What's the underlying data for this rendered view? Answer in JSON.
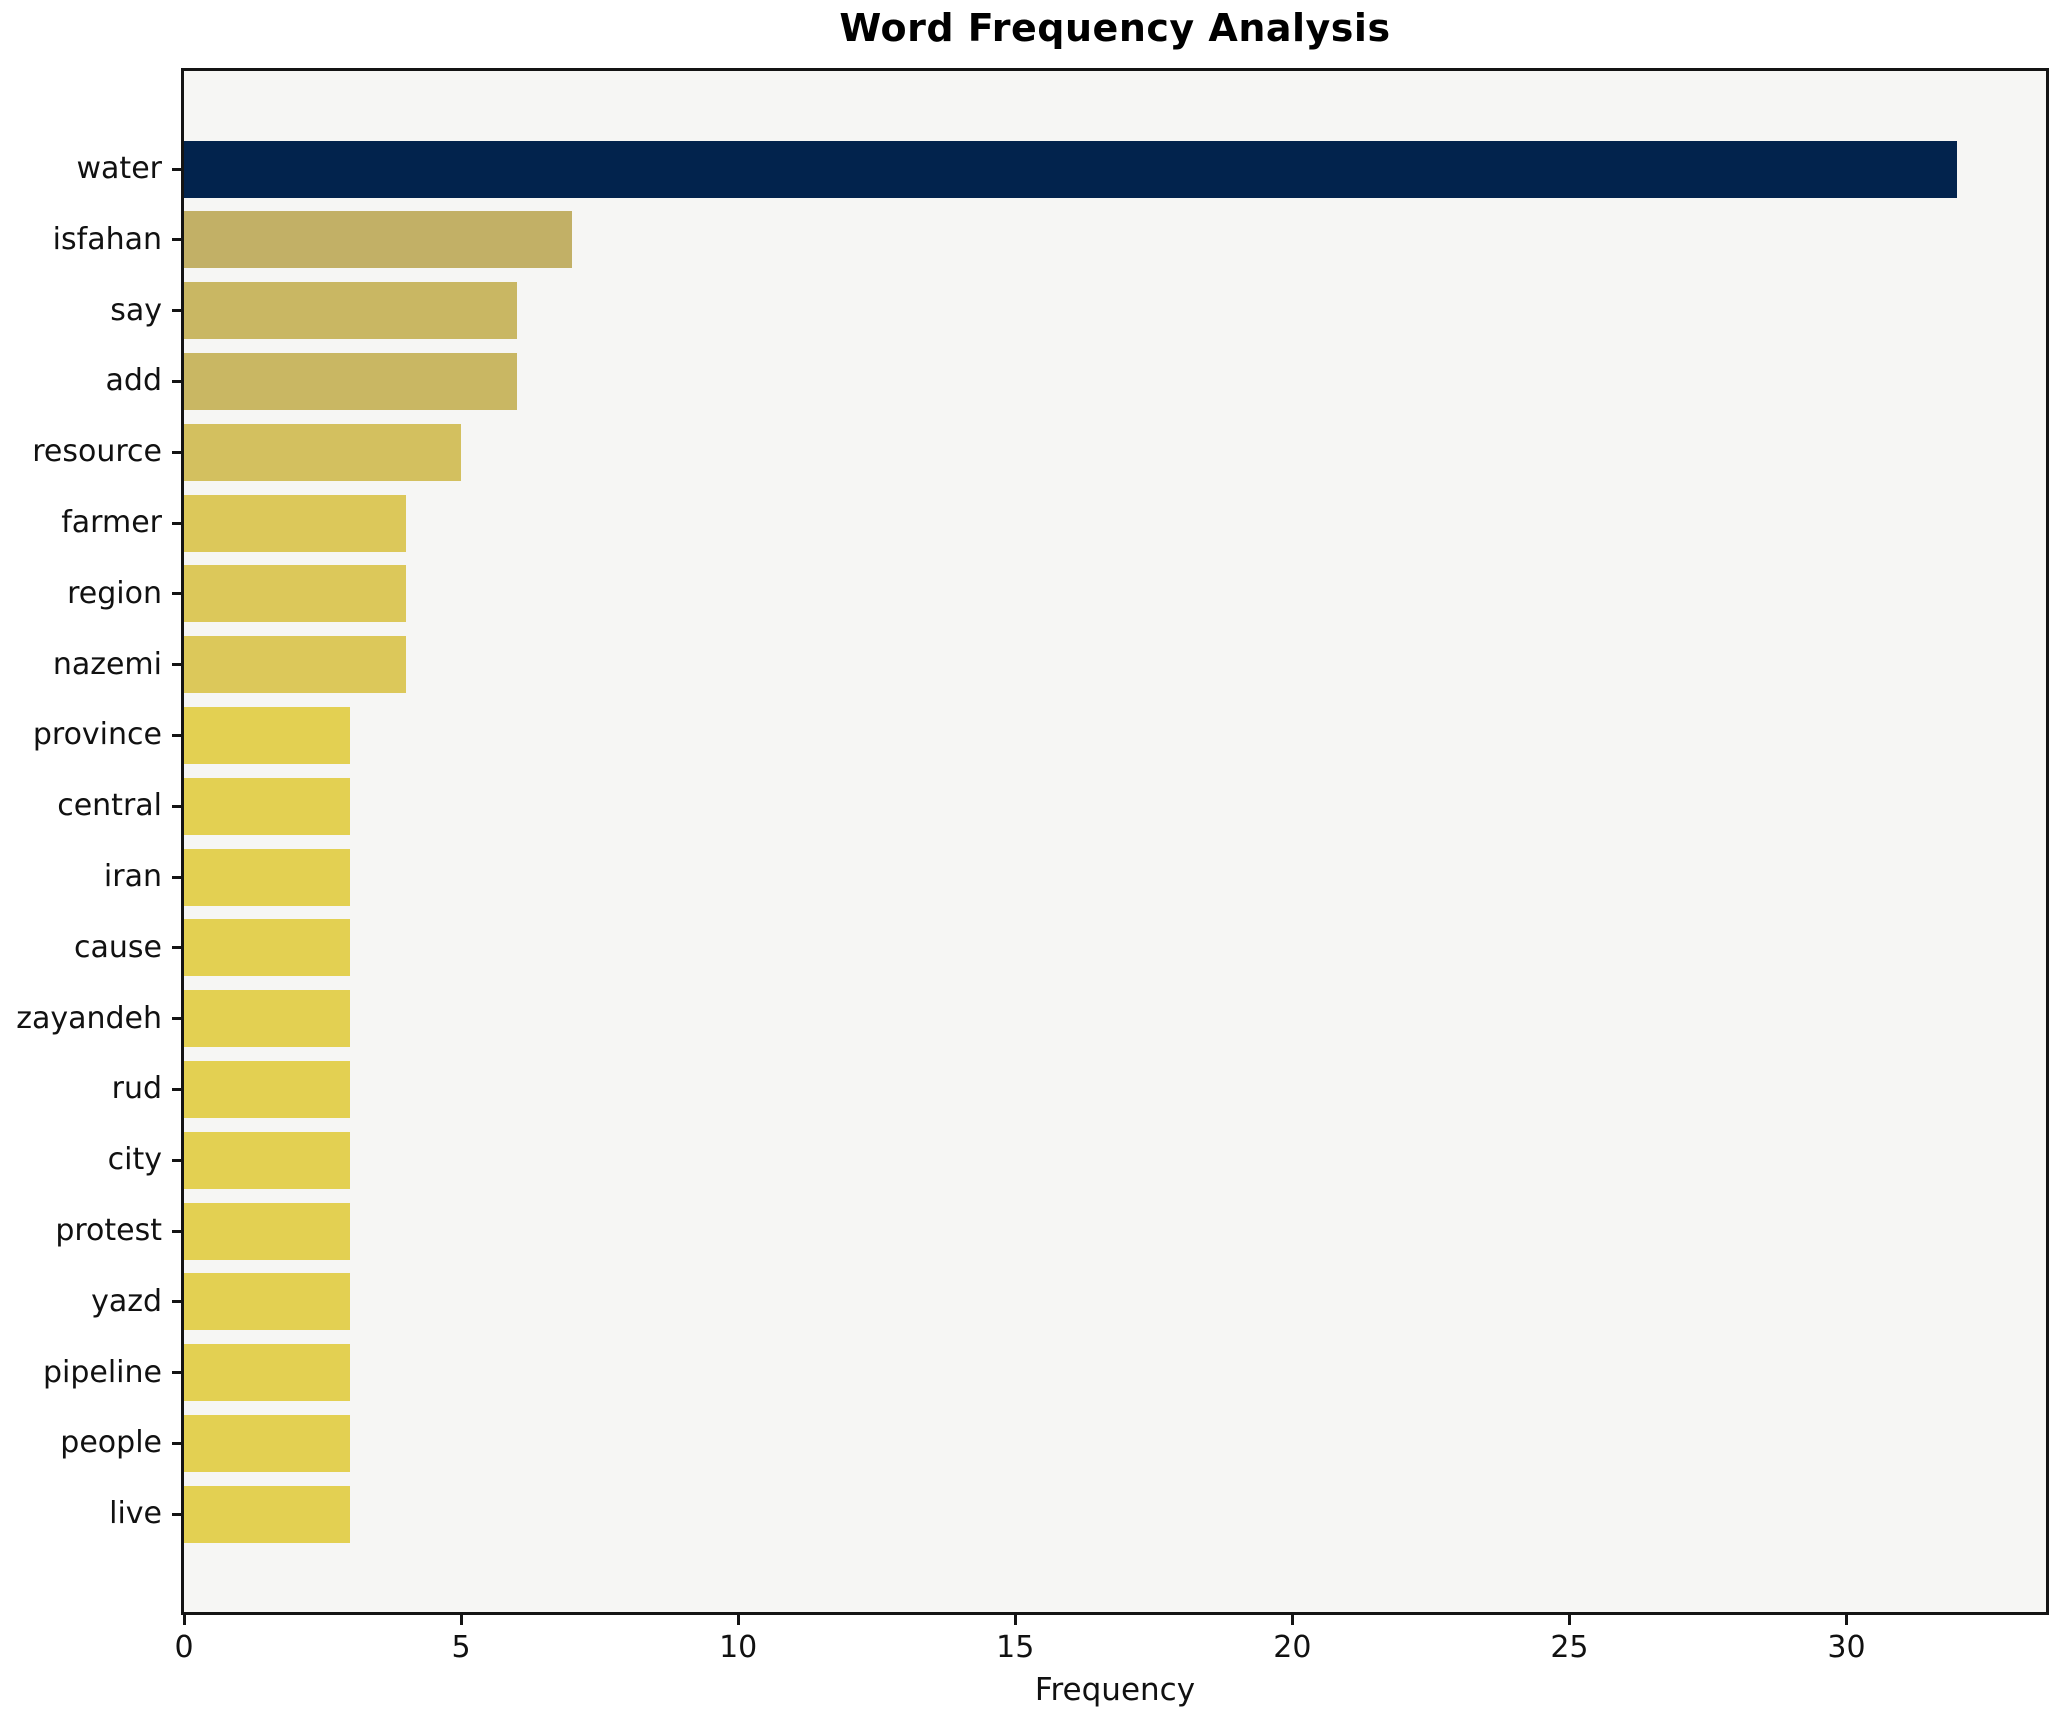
{
  "chart_data": {
    "type": "bar",
    "orientation": "horizontal",
    "title": "Word Frequency Analysis",
    "xlabel": "Frequency",
    "ylabel": "",
    "categories": [
      "water",
      "isfahan",
      "say",
      "add",
      "resource",
      "farmer",
      "region",
      "nazemi",
      "province",
      "central",
      "iran",
      "cause",
      "zayandeh",
      "rud",
      "city",
      "protest",
      "yazd",
      "pipeline",
      "people",
      "live"
    ],
    "values": [
      32,
      7,
      6,
      6,
      5,
      4,
      4,
      4,
      3,
      3,
      3,
      3,
      3,
      3,
      3,
      3,
      3,
      3,
      3,
      3
    ],
    "bar_colors": [
      "#02234d",
      "#c2b066",
      "#c9b763",
      "#c9b763",
      "#d3c05f",
      "#dcc85a",
      "#dcc85a",
      "#dcc85a",
      "#e3d052",
      "#e3d052",
      "#e3d052",
      "#e3d052",
      "#e3d052",
      "#e3d052",
      "#e3d052",
      "#e3d052",
      "#e3d052",
      "#e3d052",
      "#e3d052",
      "#e3d052"
    ],
    "xticks": [
      0,
      5,
      10,
      15,
      20,
      25,
      30
    ],
    "xlim": [
      0,
      33.6
    ],
    "grid": false,
    "legend_position": "none",
    "plot_background": "#f6f6f4",
    "page_background": "#ffffff",
    "spine_color": "#141414"
  }
}
